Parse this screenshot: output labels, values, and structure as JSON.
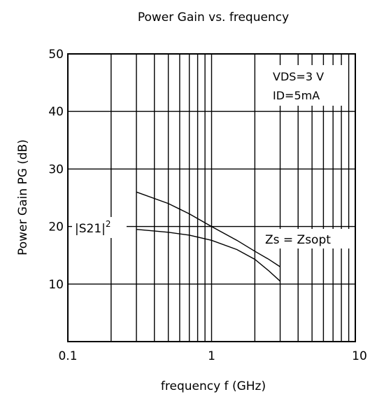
{
  "chart_data": {
    "type": "line",
    "title": "Power Gain vs. frequency",
    "xlabel": "frequency  f  (GHz)",
    "ylabel": "Power Gain  PG  (dB)",
    "x_scale": "log",
    "xlim": [
      0.1,
      10
    ],
    "ylim": [
      0,
      50
    ],
    "x_ticks": [
      0.1,
      1,
      10
    ],
    "x_tick_labels": [
      "0.1",
      "1",
      "10"
    ],
    "y_ticks": [
      10,
      20,
      30,
      40,
      50
    ],
    "y_tick_labels": [
      "10",
      "20",
      "30",
      "40",
      "50"
    ],
    "grid": true,
    "conditions": [
      "VDS=3 V",
      "ID=5mA"
    ],
    "series": [
      {
        "name": "Zs = Zsopt",
        "x": [
          0.3,
          0.5,
          0.7,
          1.0,
          1.5,
          2.0,
          2.5,
          3.0
        ],
        "y": [
          26.0,
          24.0,
          22.2,
          20.0,
          17.6,
          15.7,
          14.3,
          13.0
        ]
      },
      {
        "name": "|S21|²",
        "x": [
          0.3,
          0.5,
          0.7,
          1.0,
          1.5,
          2.0,
          2.5,
          3.0
        ],
        "y": [
          19.5,
          19.0,
          18.5,
          17.6,
          16.0,
          14.3,
          12.3,
          10.5
        ]
      }
    ],
    "annotations": [
      {
        "text": "|S21|",
        "superscript": "2",
        "series": "|S21|²"
      },
      {
        "text": "Zs = Zsopt",
        "series": "Zs = Zsopt"
      }
    ]
  }
}
